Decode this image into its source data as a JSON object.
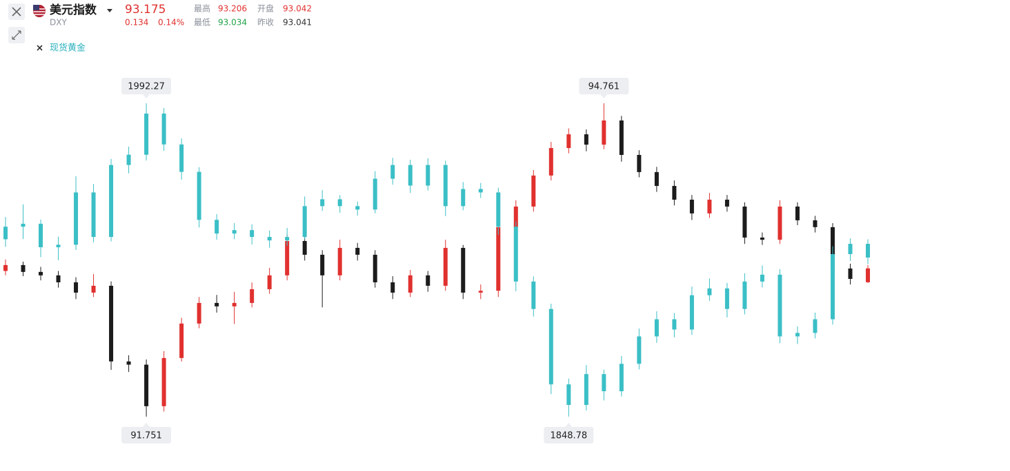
{
  "header": {
    "symbol": "DXY",
    "price": 93.175,
    "change": 0.134,
    "change_pct": "0.14%",
    "stats": [
      {
        "label": "最高",
        "value": 93.206
      },
      {
        "label": "开盘",
        "value": 93.042
      },
      {
        "label": "最低",
        "value": 93.034
      },
      {
        "label": "昨收",
        "value": 93.041
      }
    ]
  },
  "chart_data": {
    "type": "candlestick",
    "series": [
      {
        "name": "美元指数",
        "up_color": "#e0312f",
        "down_color": "#1c1c1c",
        "max_label": 94.761,
        "min_label": 91.751,
        "ohlc": [
          [
            93.15,
            93.26,
            93.11,
            93.207
          ],
          [
            93.207,
            93.24,
            93.1,
            93.141
          ],
          [
            93.141,
            93.19,
            93.06,
            93.108
          ],
          [
            93.108,
            93.15,
            92.99,
            93.041
          ],
          [
            93.041,
            93.09,
            92.88,
            92.942
          ],
          [
            92.942,
            93.12,
            92.9,
            93.008
          ],
          [
            93.008,
            93.05,
            92.2,
            92.281
          ],
          [
            92.281,
            92.34,
            92.18,
            92.25
          ],
          [
            92.25,
            92.3,
            91.751,
            91.851
          ],
          [
            91.851,
            92.38,
            91.8,
            92.314
          ],
          [
            92.314,
            92.7,
            92.28,
            92.645
          ],
          [
            92.645,
            92.9,
            92.6,
            92.843
          ],
          [
            92.843,
            92.92,
            92.75,
            92.81
          ],
          [
            92.81,
            92.95,
            92.64,
            92.843
          ],
          [
            92.843,
            93.04,
            92.8,
            92.975
          ],
          [
            92.975,
            93.18,
            92.93,
            93.108
          ],
          [
            93.108,
            93.5,
            93.06,
            93.438
          ],
          [
            93.438,
            93.48,
            93.25,
            93.306
          ],
          [
            93.306,
            93.35,
            92.8,
            93.108
          ],
          [
            93.108,
            93.45,
            93.06,
            93.372
          ],
          [
            93.372,
            93.42,
            93.25,
            93.306
          ],
          [
            93.306,
            93.35,
            92.99,
            93.041
          ],
          [
            93.041,
            93.1,
            92.88,
            92.942
          ],
          [
            92.942,
            93.16,
            92.9,
            93.108
          ],
          [
            93.108,
            93.15,
            92.95,
            93.008
          ],
          [
            93.008,
            93.45,
            92.96,
            93.372
          ],
          [
            93.372,
            93.4,
            92.88,
            92.942
          ],
          [
            92.942,
            93.02,
            92.88,
            92.96
          ],
          [
            92.96,
            93.65,
            92.9,
            93.571
          ],
          [
            93.571,
            93.83,
            93.52,
            93.769
          ],
          [
            93.769,
            94.12,
            93.72,
            94.067
          ],
          [
            94.067,
            94.39,
            94.02,
            94.331
          ],
          [
            94.331,
            94.52,
            94.28,
            94.463
          ],
          [
            94.463,
            94.51,
            94.3,
            94.364
          ],
          [
            94.364,
            94.761,
            94.32,
            94.596
          ],
          [
            94.596,
            94.64,
            94.2,
            94.265
          ],
          [
            94.265,
            94.31,
            94.05,
            94.1
          ],
          [
            94.1,
            94.15,
            93.91,
            93.967
          ],
          [
            93.967,
            94.02,
            93.78,
            93.835
          ],
          [
            93.835,
            93.88,
            93.64,
            93.703
          ],
          [
            93.703,
            93.9,
            93.66,
            93.835
          ],
          [
            93.835,
            93.88,
            93.72,
            93.769
          ],
          [
            93.769,
            93.81,
            93.41,
            93.471
          ],
          [
            93.471,
            93.52,
            93.4,
            93.45
          ],
          [
            93.45,
            93.83,
            93.41,
            93.769
          ],
          [
            93.769,
            93.81,
            93.59,
            93.637
          ],
          [
            93.637,
            93.68,
            93.52,
            93.571
          ],
          [
            93.571,
            93.61,
            93.12,
            93.174
          ],
          [
            93.174,
            93.22,
            93.02,
            93.074
          ],
          [
            93.042,
            93.206,
            93.034,
            93.175
          ]
        ]
      },
      {
        "name": "现货黄金",
        "color": "#3bbfc6",
        "max_label": 1992.27,
        "min_label": 1848.78,
        "ohlc": [
          [
            1930.0,
            1940.2,
            1926.5,
            1935.75
          ],
          [
            1935.75,
            1946.0,
            1930.1,
            1937.1
          ],
          [
            1937.1,
            1939.0,
            1921.8,
            1926.34
          ],
          [
            1926.34,
            1931.2,
            1920.4,
            1927.5
          ],
          [
            1927.5,
            1958.9,
            1925.1,
            1951.45
          ],
          [
            1951.45,
            1955.3,
            1928.6,
            1931.05
          ],
          [
            1931.05,
            1966.8,
            1929.0,
            1964.01
          ],
          [
            1964.01,
            1972.4,
            1960.2,
            1968.72
          ],
          [
            1968.72,
            1992.27,
            1966.1,
            1987.56
          ],
          [
            1987.56,
            1990.1,
            1970.5,
            1973.43
          ],
          [
            1973.43,
            1976.2,
            1957.3,
            1960.87
          ],
          [
            1960.87,
            1963.0,
            1935.4,
            1938.89
          ],
          [
            1938.89,
            1941.5,
            1929.8,
            1932.62
          ],
          [
            1932.62,
            1937.4,
            1930.0,
            1934.19
          ],
          [
            1934.19,
            1936.8,
            1927.6,
            1931.05
          ],
          [
            1931.05,
            1934.0,
            1926.1,
            1929.48
          ],
          [
            1929.48,
            1935.2,
            1927.0,
            1931.05
          ],
          [
            1931.05,
            1949.6,
            1929.9,
            1945.17
          ],
          [
            1945.17,
            1952.5,
            1943.0,
            1948.31
          ],
          [
            1948.31,
            1950.2,
            1942.1,
            1945.17
          ],
          [
            1945.17,
            1947.3,
            1940.8,
            1943.6
          ],
          [
            1943.6,
            1961.2,
            1941.9,
            1957.73
          ],
          [
            1957.73,
            1967.3,
            1955.0,
            1964.01
          ],
          [
            1964.01,
            1966.4,
            1951.2,
            1954.59
          ],
          [
            1954.59,
            1967.1,
            1952.3,
            1964.01
          ],
          [
            1964.01,
            1966.0,
            1940.6,
            1945.17
          ],
          [
            1945.17,
            1956.2,
            1943.3,
            1953.02
          ],
          [
            1953.02,
            1955.8,
            1948.9,
            1951.45
          ],
          [
            1951.45,
            1953.6,
            1932.0,
            1935.75
          ],
          [
            1935.75,
            1938.1,
            1906.2,
            1910.64
          ],
          [
            1910.64,
            1913.0,
            1894.6,
            1898.08
          ],
          [
            1898.08,
            1900.5,
            1859.1,
            1863.54
          ],
          [
            1863.54,
            1866.2,
            1848.78,
            1854.12
          ],
          [
            1854.12,
            1872.4,
            1851.6,
            1868.25
          ],
          [
            1868.25,
            1870.3,
            1856.2,
            1860.4
          ],
          [
            1860.4,
            1876.5,
            1858.0,
            1872.96
          ],
          [
            1872.96,
            1889.1,
            1870.4,
            1885.52
          ],
          [
            1885.52,
            1897.0,
            1882.6,
            1893.37
          ],
          [
            1893.37,
            1896.2,
            1885.1,
            1888.66
          ],
          [
            1888.66,
            1908.3,
            1886.2,
            1904.36
          ],
          [
            1904.36,
            1912.1,
            1901.8,
            1907.5
          ],
          [
            1907.5,
            1910.0,
            1894.2,
            1898.08
          ],
          [
            1898.08,
            1914.4,
            1895.6,
            1910.64
          ],
          [
            1910.64,
            1918.0,
            1907.9,
            1913.78
          ],
          [
            1913.78,
            1916.3,
            1882.4,
            1885.52
          ],
          [
            1885.52,
            1890.1,
            1882.0,
            1887.1
          ],
          [
            1887.1,
            1896.4,
            1884.6,
            1893.37
          ],
          [
            1893.37,
            1926.8,
            1890.9,
            1923.2
          ],
          [
            1923.2,
            1930.4,
            1920.1,
            1927.91
          ],
          [
            1927.91,
            1930.0,
            1918.6,
            1921.63
          ]
        ]
      }
    ]
  }
}
